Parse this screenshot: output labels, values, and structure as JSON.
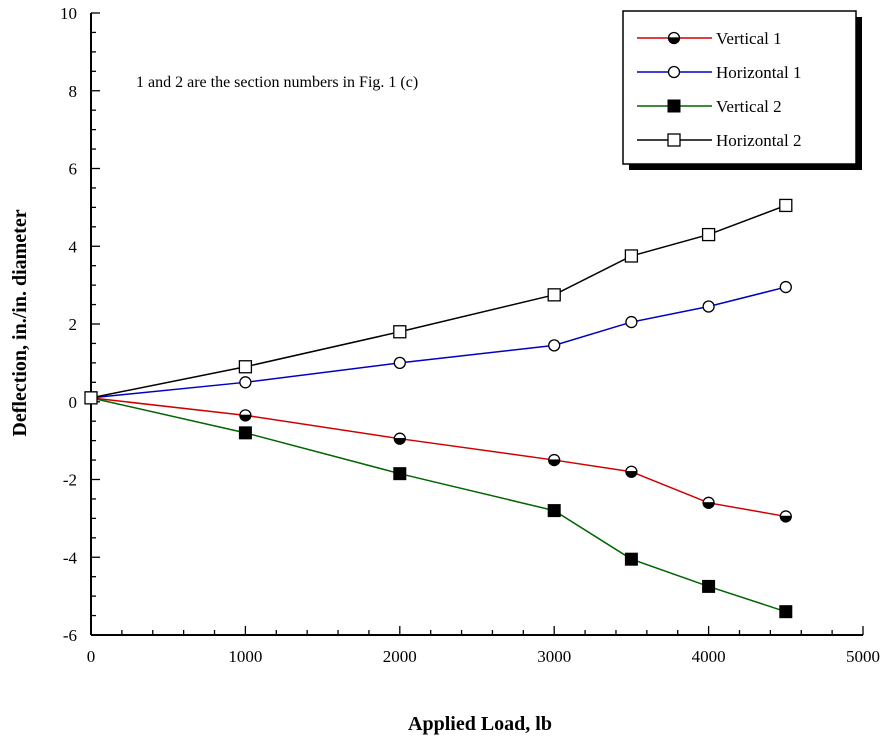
{
  "chart_data": {
    "type": "line",
    "title": "",
    "xlabel": "Applied Load, lb",
    "ylabel": "Deflection, in./in. diameter",
    "xlim": [
      0,
      5000
    ],
    "ylim": [
      -6,
      10
    ],
    "xticks": [
      0,
      1000,
      2000,
      3000,
      4000,
      5000
    ],
    "yticks": [
      -6,
      -4,
      -2,
      0,
      2,
      4,
      6,
      8,
      10
    ],
    "grid": false,
    "legend_position": "top-right",
    "annotation": "1 and 2 are the section numbers in Fig. 1 (c)",
    "series": [
      {
        "name": "Vertical 1",
        "color": "#d00000",
        "marker": "half-filled-circle",
        "x": [
          0,
          1000,
          2000,
          3000,
          3500,
          4000,
          4500
        ],
        "y": [
          0.1,
          -0.35,
          -0.95,
          -1.5,
          -1.8,
          -2.6,
          -2.95
        ]
      },
      {
        "name": "Horizontal 1",
        "color": "#0000c0",
        "marker": "open-circle",
        "x": [
          0,
          1000,
          2000,
          3000,
          3500,
          4000,
          4500
        ],
        "y": [
          0.1,
          0.5,
          1.0,
          1.45,
          2.05,
          2.45,
          2.95
        ]
      },
      {
        "name": "Vertical 2",
        "color": "#006400",
        "marker": "filled-square",
        "x": [
          0,
          1000,
          2000,
          3000,
          3500,
          4000,
          4500
        ],
        "y": [
          0.1,
          -0.8,
          -1.85,
          -2.8,
          -4.05,
          -4.75,
          -5.4
        ]
      },
      {
        "name": "Horizontal 2",
        "color": "#000000",
        "marker": "open-square",
        "x": [
          0,
          1000,
          2000,
          3000,
          3500,
          4000,
          4500
        ],
        "y": [
          0.1,
          0.9,
          1.8,
          2.75,
          3.75,
          4.3,
          5.05
        ]
      }
    ]
  }
}
